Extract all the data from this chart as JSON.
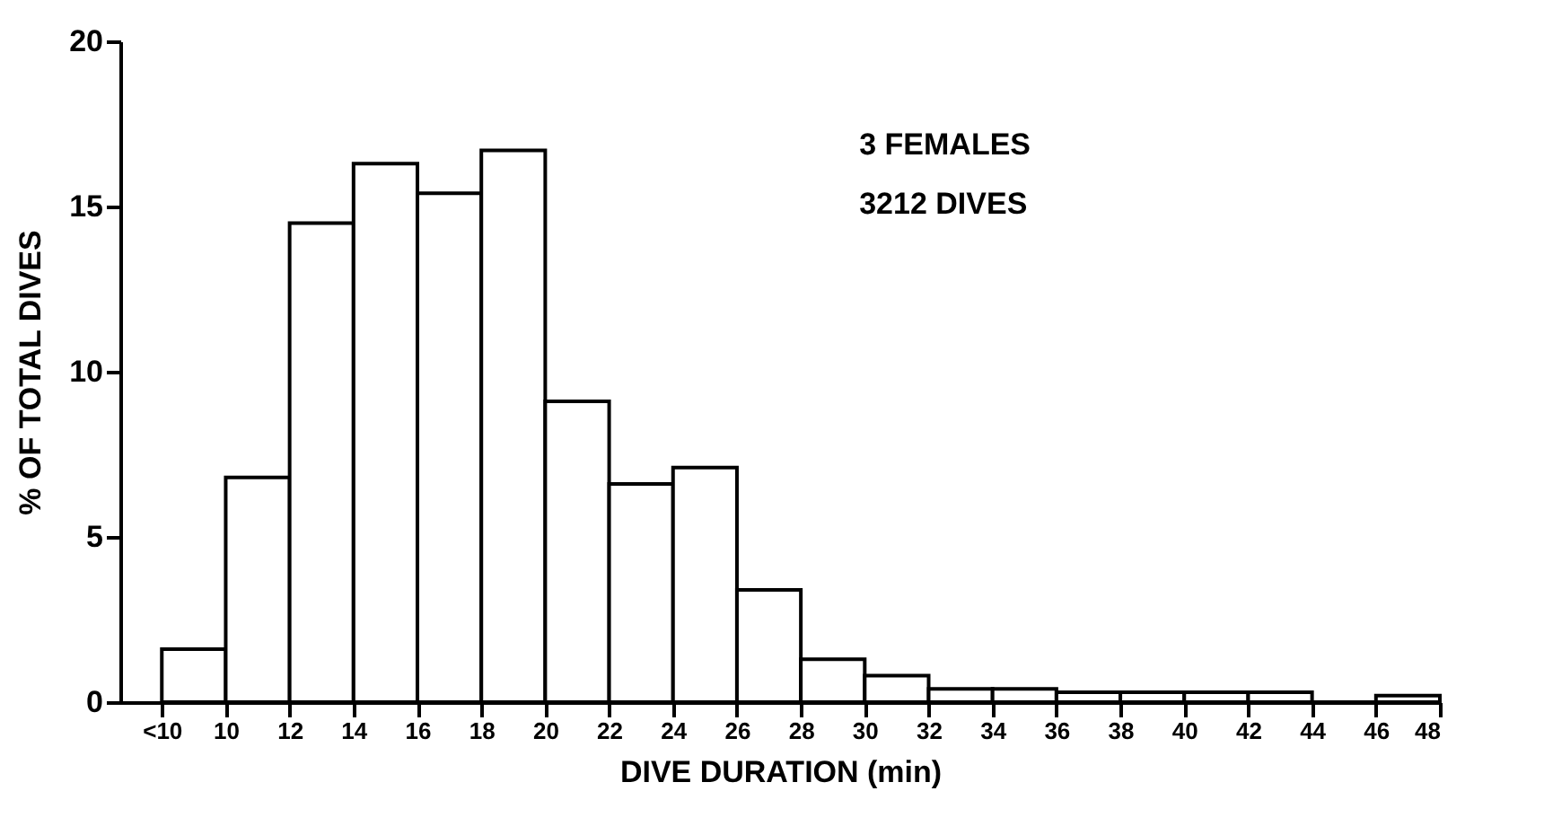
{
  "chart_data": {
    "type": "histogram",
    "xlabel": "DIVE DURATION (min)",
    "ylabel": "% OF TOTAL DIVES",
    "bins": [
      8,
      10,
      12,
      14,
      16,
      18,
      20,
      22,
      24,
      26,
      28,
      30,
      32,
      34,
      36,
      38,
      40,
      42,
      44,
      46,
      48
    ],
    "values": [
      1.6,
      6.8,
      14.5,
      16.3,
      15.4,
      16.7,
      9.1,
      6.6,
      7.1,
      3.4,
      1.3,
      0.8,
      0.4,
      0.4,
      0.3,
      0.3,
      0.3,
      0.3,
      0,
      0.2
    ],
    "color": "#ffffff",
    "xlim": [
      6.7,
      48
    ],
    "xticks": [
      {
        "value": 8,
        "label": "<10"
      },
      10,
      12,
      14,
      16,
      18,
      20,
      22,
      24,
      26,
      28,
      30,
      32,
      34,
      36,
      38,
      40,
      42,
      44,
      46,
      48
    ],
    "ylim": [
      0,
      20
    ],
    "yticks": [
      0,
      5,
      10,
      15,
      20
    ],
    "grid": false,
    "annotations": [
      "3 FEMALES",
      "3212 DIVES"
    ]
  }
}
